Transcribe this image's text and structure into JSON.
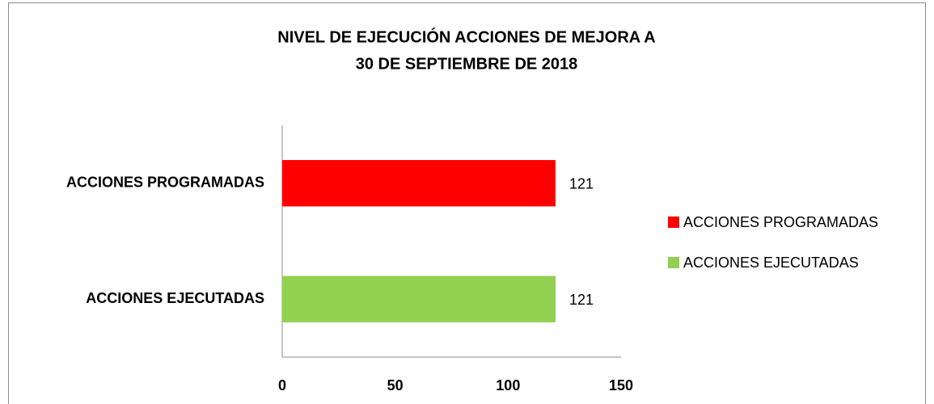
{
  "chart_data": {
    "type": "hbar",
    "title": [
      "NIVEL DE EJECUCIÓN ACCIONES DE MEJORA A",
      "30 DE SEPTIEMBRE DE 2018"
    ],
    "categories": [
      "ACCIONES PROGRAMADAS",
      "ACCIONES EJECUTADAS"
    ],
    "values": [
      121,
      121
    ],
    "colors": [
      "#ff0000",
      "#92d050"
    ],
    "xlim": [
      0,
      150
    ],
    "xticks": [
      0,
      50,
      100,
      150
    ],
    "legend": "right",
    "grid": false
  }
}
